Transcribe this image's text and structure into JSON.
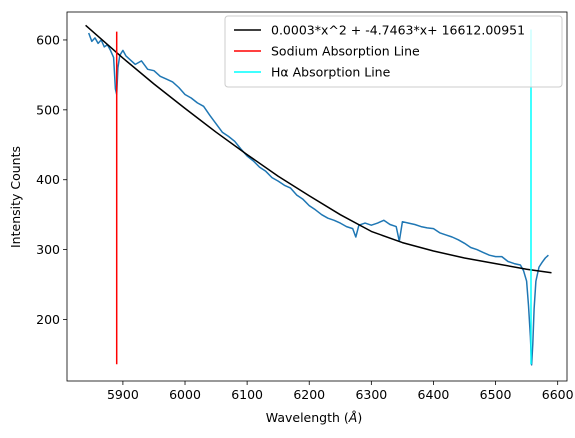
{
  "chart_data": {
    "type": "line",
    "xlabel": "Wavelength",
    "xlabel_unit": "Å",
    "ylabel": "Intensity Counts",
    "xlim": [
      5810,
      6615
    ],
    "ylim": [
      112,
      640
    ],
    "x_ticks": [
      5900,
      6000,
      6100,
      6200,
      6300,
      6400,
      6500,
      6600
    ],
    "y_ticks": [
      200,
      300,
      400,
      500,
      600
    ],
    "grid": false,
    "legend_position": "top-right",
    "colors": {
      "spectrum": "#1f77b4",
      "fit": "#000000",
      "sodium": "#ff0000",
      "halpha": "#00ffff"
    },
    "series": [
      {
        "name": "",
        "role": "spectrum",
        "x": [
          5845,
          5850,
          5855,
          5860,
          5865,
          5870,
          5875,
          5880,
          5885,
          5888,
          5890,
          5892,
          5895,
          5900,
          5905,
          5910,
          5920,
          5930,
          5940,
          5950,
          5960,
          5970,
          5980,
          5990,
          6000,
          6010,
          6020,
          6030,
          6040,
          6050,
          6060,
          6070,
          6080,
          6090,
          6100,
          6110,
          6120,
          6130,
          6140,
          6150,
          6160,
          6170,
          6180,
          6190,
          6200,
          6210,
          6220,
          6230,
          6240,
          6250,
          6260,
          6270,
          6275,
          6280,
          6290,
          6300,
          6310,
          6320,
          6330,
          6340,
          6345,
          6350,
          6360,
          6370,
          6380,
          6390,
          6400,
          6410,
          6420,
          6430,
          6440,
          6450,
          6460,
          6470,
          6480,
          6490,
          6500,
          6510,
          6520,
          6530,
          6540,
          6545,
          6550,
          6553,
          6556,
          6558,
          6560,
          6562,
          6565,
          6570,
          6575,
          6580,
          6585
        ],
        "y": [
          610,
          598,
          603,
          595,
          600,
          590,
          593,
          585,
          575,
          530,
          522,
          560,
          578,
          585,
          577,
          573,
          565,
          570,
          558,
          556,
          548,
          544,
          540,
          532,
          522,
          517,
          510,
          505,
          492,
          480,
          468,
          462,
          455,
          444,
          434,
          427,
          418,
          412,
          403,
          398,
          392,
          388,
          378,
          372,
          363,
          357,
          350,
          345,
          342,
          338,
          333,
          330,
          318,
          335,
          338,
          335,
          338,
          342,
          336,
          333,
          312,
          340,
          338,
          336,
          333,
          331,
          330,
          324,
          321,
          318,
          314,
          309,
          303,
          300,
          296,
          292,
          290,
          290,
          283,
          280,
          278,
          270,
          255,
          220,
          175,
          135,
          165,
          215,
          255,
          275,
          282,
          288,
          292
        ]
      },
      {
        "name": "0.0003*x^2 + -4.7463*x+ 16612.00951",
        "role": "fit",
        "x": [
          5840,
          5900,
          5950,
          6000,
          6050,
          6100,
          6150,
          6200,
          6250,
          6300,
          6350,
          6400,
          6450,
          6500,
          6550,
          6590
        ],
        "y": [
          621,
          574,
          537,
          502,
          468,
          436,
          405,
          377,
          350,
          326,
          310,
          298,
          288,
          280,
          272,
          267
        ]
      },
      {
        "name": "Sodium Absorption Line",
        "role": "sodium",
        "x": [
          5890,
          5890
        ],
        "y": [
          136,
          612
        ]
      },
      {
        "name": "Hα Absorption Line",
        "role": "halpha",
        "x": [
          6557,
          6557
        ],
        "y": [
          136,
          615
        ]
      }
    ]
  }
}
